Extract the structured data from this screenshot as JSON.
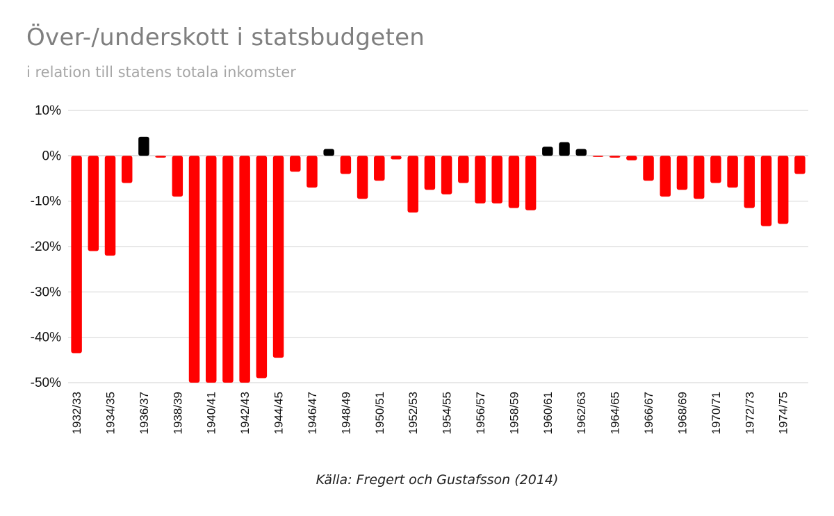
{
  "chart_data": {
    "type": "bar",
    "title": "Över-/underskott i statsbudgeten",
    "subtitle": "i relation till statens totala inkomster",
    "source": "Källa: Fregert och Gustafsson (2014)",
    "ylim": [
      -50,
      10
    ],
    "yticks": [
      10,
      0,
      -10,
      -20,
      -30,
      -40,
      -50
    ],
    "ytick_labels": [
      "10%",
      "0%",
      "-10%",
      "-20%",
      "-30%",
      "-40%",
      "-50%"
    ],
    "grid": true,
    "legend": "none",
    "colors": {
      "deficit": "#ff0000",
      "surplus": "#000000",
      "grid": "#d9d9d9"
    },
    "categories": [
      "1932/33",
      "1933/34",
      "1934/35",
      "1935/36",
      "1936/37",
      "1937/38",
      "1938/39",
      "1939/40",
      "1940/41",
      "1941/42",
      "1942/43",
      "1943/44",
      "1944/45",
      "1945/46",
      "1946/47",
      "1947/48",
      "1948/49",
      "1949/50",
      "1950/51",
      "1951/52",
      "1952/53",
      "1953/54",
      "1954/55",
      "1955/56",
      "1956/57",
      "1957/58",
      "1958/59",
      "1959/60",
      "1960/61",
      "1961/62",
      "1962/63",
      "1963/64",
      "1964/65",
      "1965/66",
      "1966/67",
      "1967/68",
      "1968/69",
      "1969/70",
      "1970/71",
      "1971/72",
      "1972/73",
      "1973/74",
      "1974/75",
      "1975/76"
    ],
    "x_tick_labels": [
      "1932/33",
      "",
      "1934/35",
      "",
      "1936/37",
      "",
      "1938/39",
      "",
      "1940/41",
      "",
      "1942/43",
      "",
      "1944/45",
      "",
      "1946/47",
      "",
      "1948/49",
      "",
      "1950/51",
      "",
      "1952/53",
      "",
      "1954/55",
      "",
      "1956/57",
      "",
      "1958/59",
      "",
      "1960/61",
      "",
      "1962/63",
      "",
      "1964/65",
      "",
      "1966/67",
      "",
      "1968/69",
      "",
      "1970/71",
      "",
      "1972/73",
      "",
      "1974/75",
      ""
    ],
    "values": [
      -43.5,
      -21,
      -22,
      -6,
      4.2,
      -0.4,
      -9,
      -50,
      -50,
      -50,
      -50,
      -49,
      -44.5,
      -3.5,
      -7,
      1.5,
      -4,
      -9.5,
      -5.5,
      -0.8,
      -12.5,
      -7.5,
      -8.5,
      -6,
      -10.5,
      -10.5,
      -11.5,
      -12,
      2,
      3,
      1.5,
      -0.2,
      -0.4,
      -1,
      -5.5,
      -9,
      -7.5,
      -9.5,
      -6,
      -7,
      -11.5,
      -15.5,
      -15,
      -4
    ]
  }
}
